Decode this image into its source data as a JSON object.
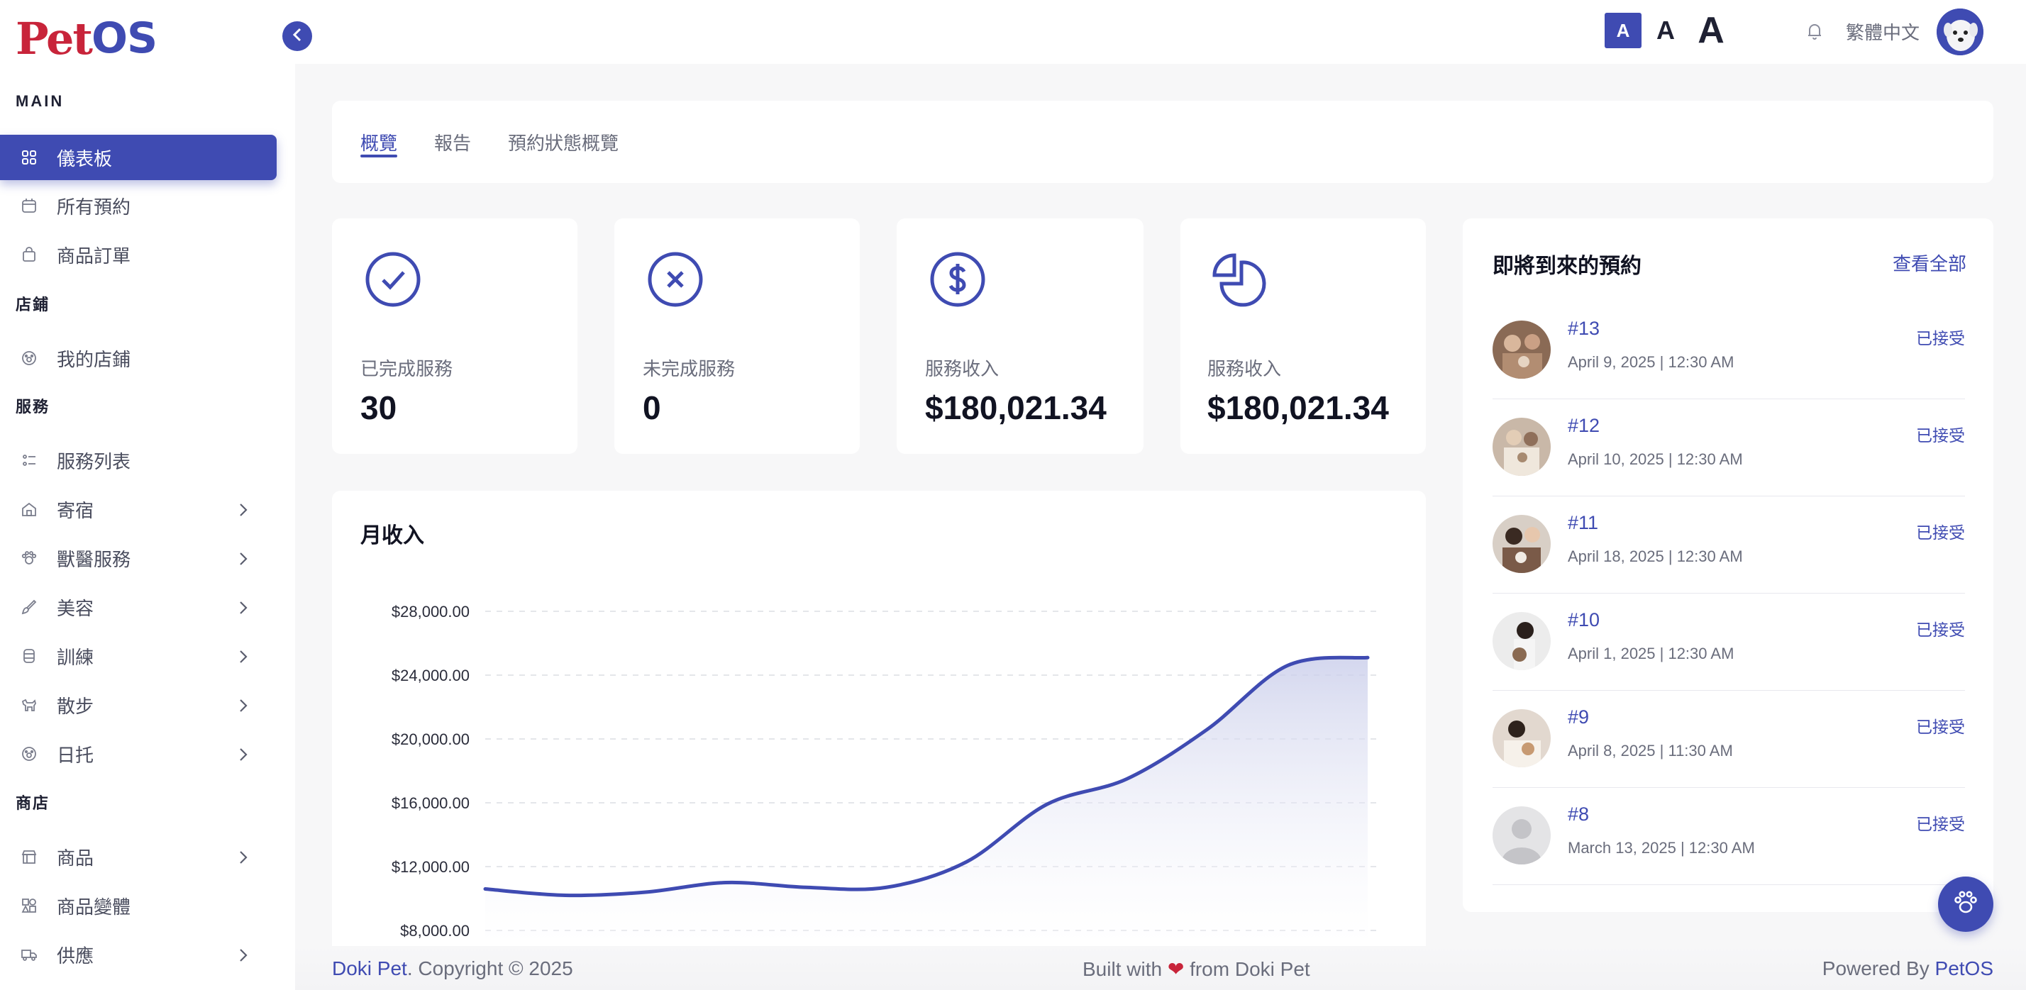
{
  "brand": {
    "logo_pet": "Pet",
    "logo_os": "OS"
  },
  "sidebar": {
    "sections": {
      "main": "MAIN",
      "store": "店鋪",
      "services": "服務",
      "shop": "商店"
    },
    "items": [
      {
        "label": "儀表板",
        "icon": "grid-icon"
      },
      {
        "label": "所有預約",
        "icon": "calendar-icon"
      },
      {
        "label": "商品訂單",
        "icon": "bag-icon"
      },
      {
        "label": "我的店鋪",
        "icon": "paw-icon"
      },
      {
        "label": "服務列表",
        "icon": "list-icon"
      },
      {
        "label": "寄宿",
        "icon": "house-icon"
      },
      {
        "label": "獸醫服務",
        "icon": "vet-icon"
      },
      {
        "label": "美容",
        "icon": "brush-icon"
      },
      {
        "label": "訓練",
        "icon": "training-icon"
      },
      {
        "label": "散步",
        "icon": "dog-icon"
      },
      {
        "label": "日托",
        "icon": "daycare-icon"
      },
      {
        "label": "商品",
        "icon": "store-icon"
      },
      {
        "label": "商品變體",
        "icon": "variants-icon"
      },
      {
        "label": "供應",
        "icon": "truck-icon"
      }
    ]
  },
  "topbar": {
    "font_sizes": [
      "A",
      "A",
      "A"
    ],
    "language": "繁體中文"
  },
  "tabs": [
    "概覽",
    "報告",
    "預約狀態概覽"
  ],
  "stats": [
    {
      "label": "已完成服務",
      "value": "30",
      "icon": "check-circle-icon"
    },
    {
      "label": "未完成服務",
      "value": "0",
      "icon": "x-circle-icon"
    },
    {
      "label": "服務收入",
      "value": "$180,021.34",
      "icon": "dollar-circle-icon"
    },
    {
      "label": "服務收入",
      "value": "$180,021.34",
      "icon": "pie-chart-icon"
    }
  ],
  "chart_data": {
    "type": "area",
    "title": "月收入",
    "y_ticks": [
      "$28,000.00",
      "$24,000.00",
      "$20,000.00",
      "$16,000.00",
      "$12,000.00",
      "$8,000.00"
    ],
    "ylim": [
      8000,
      28000
    ],
    "values": [
      10600,
      10200,
      10400,
      11000,
      10700,
      10700,
      12300,
      15900,
      17500,
      20600,
      24600,
      25100
    ],
    "grid": true,
    "colors": {
      "line": "#3f4bb2",
      "fill": "#e3e5f4"
    }
  },
  "upcoming": {
    "title": "即將到來的預約",
    "view_all": "查看全部",
    "items": [
      {
        "id": "#13",
        "date": "April 9, 2025 | 12:30 AM",
        "status": "已接受"
      },
      {
        "id": "#12",
        "date": "April 10, 2025 | 12:30 AM",
        "status": "已接受"
      },
      {
        "id": "#11",
        "date": "April 18, 2025 | 12:30 AM",
        "status": "已接受"
      },
      {
        "id": "#10",
        "date": "April 1, 2025 | 12:30 AM",
        "status": "已接受"
      },
      {
        "id": "#9",
        "date": "April 8, 2025 | 11:30 AM",
        "status": "已接受"
      },
      {
        "id": "#8",
        "date": "March 13, 2025 | 12:30 AM",
        "status": "已接受"
      }
    ]
  },
  "footer": {
    "brand": "Doki Pet",
    "copyright": ". Copyright © 2025",
    "built_prefix": "Built with",
    "built_suffix": "from Doki Pet",
    "powered_prefix": "Powered By",
    "powered_brand": "PetOS"
  }
}
